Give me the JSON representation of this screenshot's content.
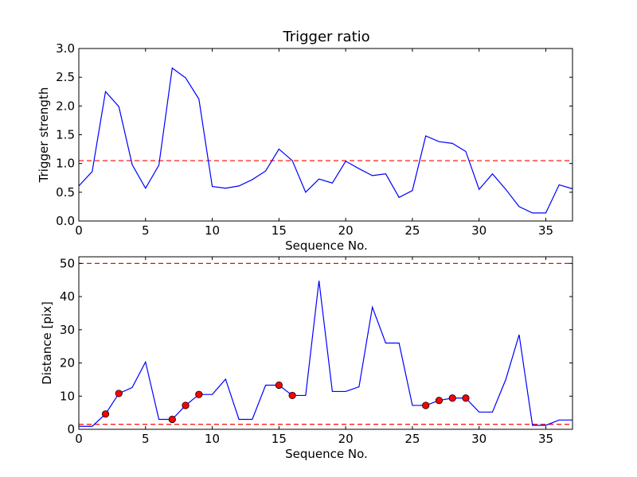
{
  "chart_data": [
    {
      "type": "line",
      "title": "Trigger ratio",
      "xlabel": "Sequence No.",
      "ylabel": "Trigger strength",
      "xlim": [
        0,
        37
      ],
      "ylim": [
        0,
        3.0
      ],
      "xticks": [
        0,
        5,
        10,
        15,
        20,
        25,
        30,
        35
      ],
      "yticks": [
        0.0,
        0.5,
        1.0,
        1.5,
        2.0,
        2.5,
        3.0
      ],
      "ytick_labels": [
        "0.0",
        "0.5",
        "1.0",
        "1.5",
        "2.0",
        "2.5",
        "3.0"
      ],
      "series": [
        {
          "color": "#0000ff",
          "x": [
            0,
            1,
            2,
            3,
            4,
            5,
            6,
            7,
            8,
            9,
            10,
            11,
            12,
            13,
            14,
            15,
            16,
            17,
            18,
            19,
            20,
            21,
            22,
            23,
            24,
            25,
            26,
            27,
            28,
            29,
            30,
            31,
            32,
            33,
            34,
            35,
            36,
            37
          ],
          "values": [
            0.61,
            0.86,
            2.25,
            1.99,
            0.98,
            0.57,
            0.97,
            2.66,
            2.49,
            2.12,
            0.6,
            0.57,
            0.61,
            0.72,
            0.87,
            1.25,
            1.05,
            0.5,
            0.73,
            0.66,
            1.04,
            0.91,
            0.79,
            0.82,
            0.41,
            0.53,
            1.48,
            1.38,
            1.35,
            1.21,
            0.55,
            0.82,
            0.55,
            0.25,
            0.14,
            0.14,
            0.63,
            0.56
          ]
        }
      ],
      "reference_lines": [
        {
          "y": 1.05,
          "color": "#ff0000",
          "style": "dashed"
        }
      ]
    },
    {
      "type": "line",
      "title": "",
      "xlabel": "Sequence No.",
      "ylabel": "Distance [pix]",
      "xlim": [
        0,
        37
      ],
      "ylim": [
        0,
        52
      ],
      "xticks": [
        0,
        5,
        10,
        15,
        20,
        25,
        30,
        35
      ],
      "yticks": [
        0,
        10,
        20,
        30,
        40,
        50
      ],
      "ytick_labels": [
        "0",
        "10",
        "20",
        "30",
        "40",
        "50"
      ],
      "series": [
        {
          "color": "#0000ff",
          "x": [
            0,
            1,
            2,
            3,
            4,
            5,
            6,
            7,
            8,
            9,
            10,
            11,
            12,
            13,
            14,
            15,
            16,
            17,
            18,
            19,
            20,
            21,
            22,
            23,
            24,
            25,
            26,
            27,
            28,
            29,
            30,
            31,
            32,
            33,
            34,
            35,
            36,
            37
          ],
          "values": [
            0.9,
            0.9,
            4.6,
            10.8,
            12.6,
            20.3,
            3.0,
            3.0,
            7.2,
            10.5,
            10.5,
            15.1,
            3.0,
            3.0,
            13.3,
            13.3,
            10.2,
            10.2,
            44.8,
            11.4,
            11.4,
            12.8,
            36.8,
            26.0,
            26.0,
            7.2,
            7.2,
            8.7,
            9.4,
            9.4,
            5.2,
            5.2,
            15.0,
            28.5,
            1.2,
            1.2,
            2.8,
            2.8
          ]
        }
      ],
      "markers": {
        "color": "#ff0000",
        "points": [
          {
            "x": 2,
            "y": 4.6
          },
          {
            "x": 3,
            "y": 10.8
          },
          {
            "x": 7,
            "y": 3.0
          },
          {
            "x": 8,
            "y": 7.2
          },
          {
            "x": 9,
            "y": 10.5
          },
          {
            "x": 15,
            "y": 13.3
          },
          {
            "x": 16,
            "y": 10.2
          },
          {
            "x": 26,
            "y": 7.2
          },
          {
            "x": 27,
            "y": 8.7
          },
          {
            "x": 28,
            "y": 9.4
          },
          {
            "x": 29,
            "y": 9.4
          }
        ]
      },
      "reference_lines": [
        {
          "y": 50,
          "color": "#ff0000",
          "style": "dashed"
        },
        {
          "y": 1.5,
          "color": "#ff0000",
          "style": "dashed"
        }
      ]
    }
  ]
}
